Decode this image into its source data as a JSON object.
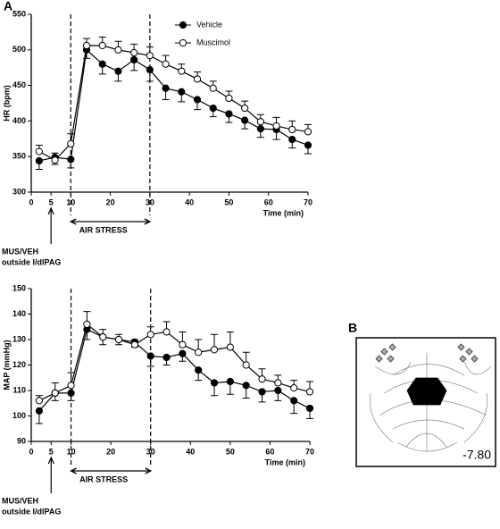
{
  "panels": {
    "a": "A",
    "b": "B"
  },
  "atlas_level": "-7.80",
  "chart_data": [
    {
      "type": "line",
      "ylabel": "HR (bpm)",
      "xlabel": "Time (min)",
      "x": [
        2,
        6,
        10,
        14,
        18,
        22,
        26,
        30,
        34,
        38,
        42,
        46,
        50,
        54,
        58,
        62,
        66,
        70
      ],
      "xlim": [
        0,
        70
      ],
      "xticks": [
        0,
        5,
        10,
        20,
        30,
        40,
        50,
        60,
        70
      ],
      "ylim": [
        300,
        550
      ],
      "yticks": [
        300,
        350,
        400,
        450,
        500,
        550
      ],
      "vlines": [
        10,
        30
      ],
      "span_label": {
        "text": "AIR STRESS",
        "from": 10,
        "to": 30
      },
      "annotation": {
        "x": 5,
        "lines": [
          "MUS/VEH",
          "outside l/dlPAG"
        ]
      },
      "legend": true,
      "series": [
        {
          "name": "Vehicle",
          "color": "#000000",
          "marker_fill": "#000000",
          "error_direction": "down",
          "values": [
            344,
            349,
            346,
            500,
            480,
            470,
            486,
            472,
            446,
            441,
            430,
            418,
            410,
            401,
            389,
            388,
            374,
            366
          ],
          "errors": [
            12,
            10,
            12,
            12,
            14,
            14,
            15,
            16,
            16,
            14,
            14,
            12,
            12,
            12,
            12,
            14,
            12,
            12
          ]
        },
        {
          "name": "Muscimol",
          "color": "#000000",
          "marker_fill": "#ffffff",
          "error_direction": "up",
          "values": [
            357,
            345,
            368,
            506,
            506,
            500,
            496,
            492,
            480,
            470,
            459,
            446,
            432,
            418,
            399,
            393,
            388,
            385
          ],
          "errors": [
            9,
            10,
            14,
            10,
            12,
            12,
            12,
            12,
            12,
            10,
            10,
            10,
            10,
            10,
            10,
            12,
            12,
            10
          ]
        }
      ]
    },
    {
      "type": "line",
      "ylabel": "MAP (mmHg)",
      "xlabel": "Time (min)",
      "x": [
        2,
        6,
        10,
        14,
        18,
        22,
        26,
        30,
        34,
        38,
        42,
        46,
        50,
        54,
        58,
        62,
        66,
        70
      ],
      "xlim": [
        0,
        70
      ],
      "xticks": [
        0,
        5,
        10,
        20,
        30,
        40,
        50,
        60,
        70
      ],
      "ylim": [
        90,
        150
      ],
      "yticks": [
        90,
        100,
        110,
        120,
        130,
        140,
        150
      ],
      "vlines": [
        10,
        30
      ],
      "span_label": {
        "text": "AIR STRESS",
        "from": 10,
        "to": 30
      },
      "annotation": {
        "x": 5,
        "lines": [
          "MUS/VEH",
          "outside l/dlPAG"
        ]
      },
      "legend": false,
      "series": [
        {
          "name": "Vehicle",
          "color": "#000000",
          "marker_fill": "#000000",
          "error_direction": "down",
          "values": [
            102,
            109,
            109,
            134,
            131,
            130,
            129,
            123.5,
            123,
            124.5,
            118,
            113,
            113.5,
            112,
            109.5,
            110,
            106,
            103
          ],
          "errors": [
            5,
            3,
            3,
            4,
            3,
            2,
            2,
            4,
            3,
            3,
            4,
            5,
            5,
            5,
            4,
            4,
            5,
            4
          ]
        },
        {
          "name": "Muscimol",
          "color": "#000000",
          "marker_fill": "#ffffff",
          "error_direction": "up",
          "values": [
            106,
            109,
            112,
            136,
            131,
            130,
            128,
            132,
            133,
            128,
            125,
            126,
            127,
            120,
            114.5,
            113,
            111,
            109.5
          ],
          "errors": [
            2,
            4,
            5,
            5,
            3,
            2,
            2,
            3,
            4,
            5,
            5,
            6,
            6,
            5,
            4,
            3,
            3,
            4
          ]
        }
      ]
    }
  ]
}
